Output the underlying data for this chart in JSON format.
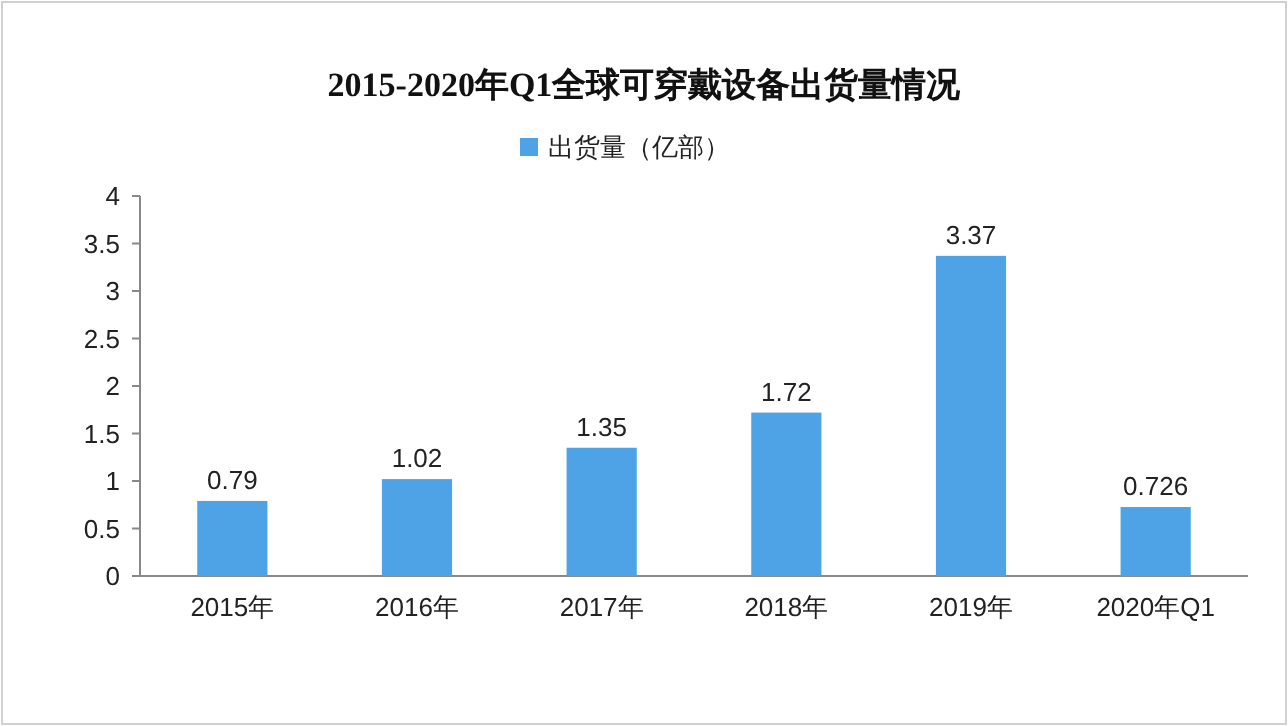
{
  "chart_data": {
    "type": "bar",
    "title": "2015-2020年Q1全球可穿戴设备出货量情况",
    "categories": [
      "2015年",
      "2016年",
      "2017年",
      "2018年",
      "2019年",
      "2020年Q1"
    ],
    "series": [
      {
        "name": "出货量（亿部）",
        "color": "#4da3e6",
        "values": [
          0.79,
          1.02,
          1.35,
          1.72,
          3.37,
          0.726
        ]
      }
    ],
    "ylim": [
      0,
      4
    ],
    "yticks": [
      0,
      0.5,
      1,
      1.5,
      2,
      2.5,
      3,
      3.5,
      4
    ],
    "grid": false,
    "legend": "top",
    "data_labels": true
  }
}
